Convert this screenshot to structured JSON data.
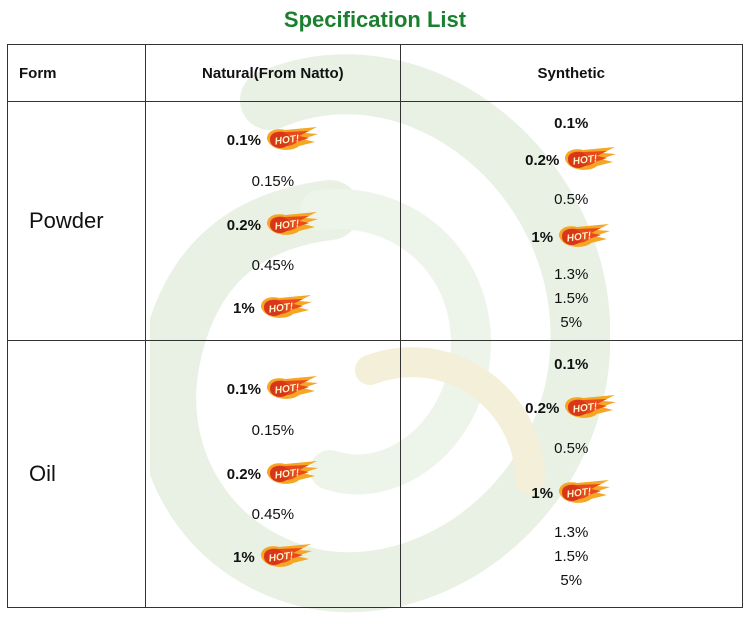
{
  "title": "Specification List",
  "title_color": "#1a7f2e",
  "hot_badge_text": "HOT!",
  "headers": {
    "form": "Form",
    "natural": "Natural(From Natto)",
    "synthetic": "Synthetic"
  },
  "rows": [
    {
      "form": "Powder",
      "natural": [
        {
          "text": "0.1%",
          "hot": true
        },
        {
          "text": "0.15%",
          "hot": false
        },
        {
          "text": "0.2%",
          "hot": true
        },
        {
          "text": "0.45%",
          "hot": false
        },
        {
          "text": "1%",
          "hot": true
        }
      ],
      "synthetic": [
        {
          "text": "0.1%",
          "hot": false,
          "bold": true
        },
        {
          "text": "0.2%",
          "hot": true
        },
        {
          "text": "0.5%",
          "hot": false
        },
        {
          "text": "1%",
          "hot": true
        },
        {
          "text": "1.3%",
          "hot": false
        },
        {
          "text": "1.5%",
          "hot": false
        },
        {
          "text": "5%",
          "hot": false
        }
      ]
    },
    {
      "form": "Oil",
      "natural": [
        {
          "text": "0.1%",
          "hot": true
        },
        {
          "text": "0.15%",
          "hot": false
        },
        {
          "text": "0.2%",
          "hot": true
        },
        {
          "text": "0.45%",
          "hot": false
        },
        {
          "text": "1%",
          "hot": true
        }
      ],
      "synthetic": [
        {
          "text": "0.1%",
          "hot": false,
          "bold": true
        },
        {
          "text": "0.2%",
          "hot": true
        },
        {
          "text": "0.5%",
          "hot": false
        },
        {
          "text": "1%",
          "hot": true
        },
        {
          "text": "1.3%",
          "hot": false
        },
        {
          "text": "1.5%",
          "hot": false
        },
        {
          "text": "5%",
          "hot": false
        }
      ]
    }
  ]
}
